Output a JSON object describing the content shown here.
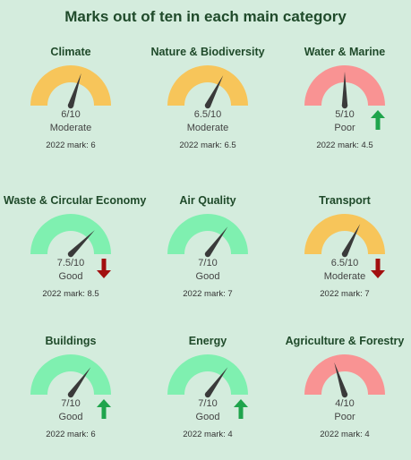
{
  "title": "Marks out of ten in each main category",
  "colors": {
    "good": "#7ff0b0",
    "moderate": "#f7c55a",
    "poor": "#f99393",
    "needle": "#3a3a3a",
    "arrow_up": "#1fa44c",
    "arrow_down": "#a20f0f"
  },
  "categories": [
    {
      "name": "Climate",
      "score": 6,
      "score_label": "6/10",
      "rating": "Moderate",
      "prev_label": "2022 mark: 6",
      "trend": "none"
    },
    {
      "name": "Nature & Biodiversity",
      "score": 6.5,
      "score_label": "6.5/10",
      "rating": "Moderate",
      "prev_label": "2022 mark: 6.5",
      "trend": "none"
    },
    {
      "name": "Water & Marine",
      "score": 5,
      "score_label": "5/10",
      "rating": "Poor",
      "prev_label": "2022 mark: 4.5",
      "trend": "up"
    },
    {
      "name": "Waste & Circular Economy",
      "score": 7.5,
      "score_label": "7.5/10",
      "rating": "Good",
      "prev_label": "2022 mark: 8.5",
      "trend": "down"
    },
    {
      "name": "Air Quality",
      "score": 7,
      "score_label": "7/10",
      "rating": "Good",
      "prev_label": "2022 mark: 7",
      "trend": "none"
    },
    {
      "name": "Transport",
      "score": 6.5,
      "score_label": "6.5/10",
      "rating": "Moderate",
      "prev_label": "2022 mark: 7",
      "trend": "down"
    },
    {
      "name": "Buildings",
      "score": 7,
      "score_label": "7/10",
      "rating": "Good",
      "prev_label": "2022 mark: 6",
      "trend": "up"
    },
    {
      "name": "Energy",
      "score": 7,
      "score_label": "7/10",
      "rating": "Good",
      "prev_label": "2022 mark: 4",
      "trend": "up"
    },
    {
      "name": "Agriculture & Forestry",
      "score": 4,
      "score_label": "4/10",
      "rating": "Poor",
      "prev_label": "2022 mark: 4",
      "trend": "none"
    }
  ]
}
